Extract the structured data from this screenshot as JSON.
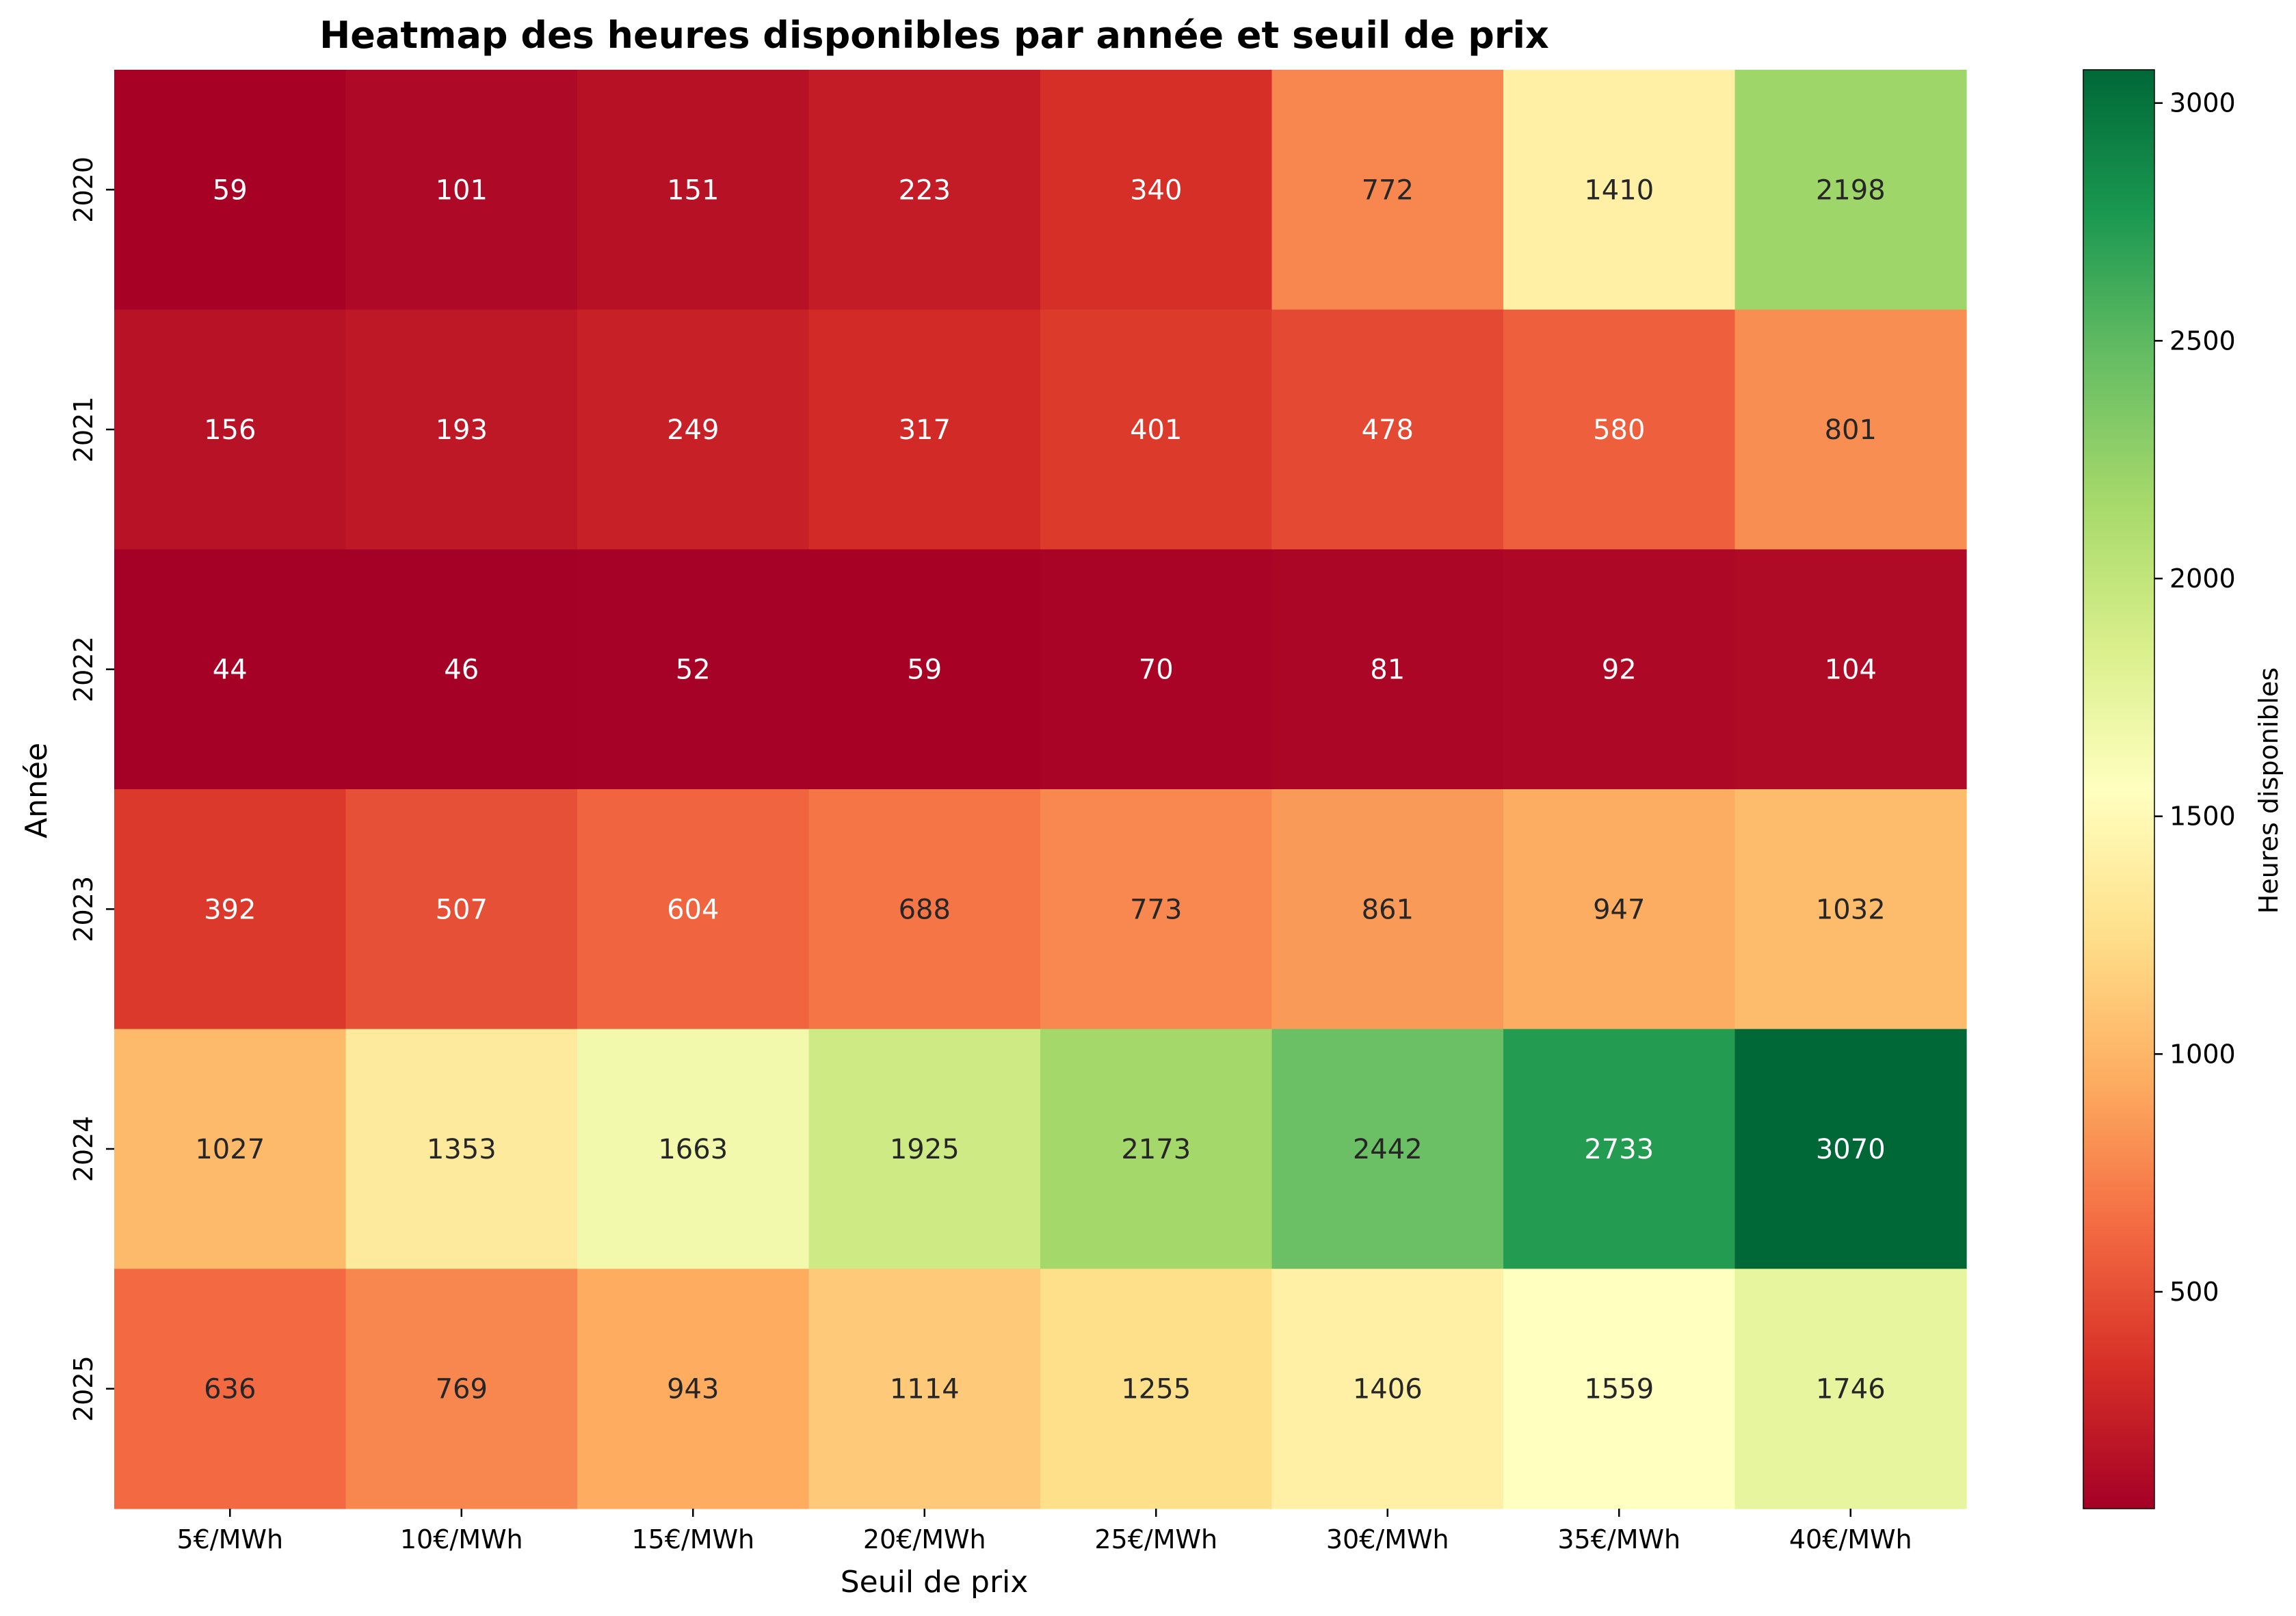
{
  "chart_data": {
    "type": "heatmap",
    "title": "Heatmap des heures disponibles par année et seuil de prix",
    "xlabel": "Seuil de prix",
    "ylabel": "Année",
    "x_categories": [
      "5€/MWh",
      "10€/MWh",
      "15€/MWh",
      "20€/MWh",
      "25€/MWh",
      "30€/MWh",
      "35€/MWh",
      "40€/MWh"
    ],
    "y_categories": [
      "2020",
      "2021",
      "2022",
      "2023",
      "2024",
      "2025"
    ],
    "values": [
      [
        59,
        101,
        151,
        223,
        340,
        772,
        1410,
        2198
      ],
      [
        156,
        193,
        249,
        317,
        401,
        478,
        580,
        801
      ],
      [
        44,
        46,
        52,
        59,
        70,
        81,
        92,
        104
      ],
      [
        392,
        507,
        604,
        688,
        773,
        861,
        947,
        1032
      ],
      [
        1027,
        1353,
        1663,
        1925,
        2173,
        2442,
        2733,
        3070
      ],
      [
        636,
        769,
        943,
        1114,
        1255,
        1406,
        1559,
        1746
      ]
    ],
    "colorbar": {
      "label": "Heures disponibles",
      "colormap": "RdYlGn",
      "vmin": 44,
      "vmax": 3070,
      "ticks": [
        500,
        1000,
        1500,
        2000,
        2500,
        3000
      ]
    },
    "annotations": true,
    "grid": false
  }
}
